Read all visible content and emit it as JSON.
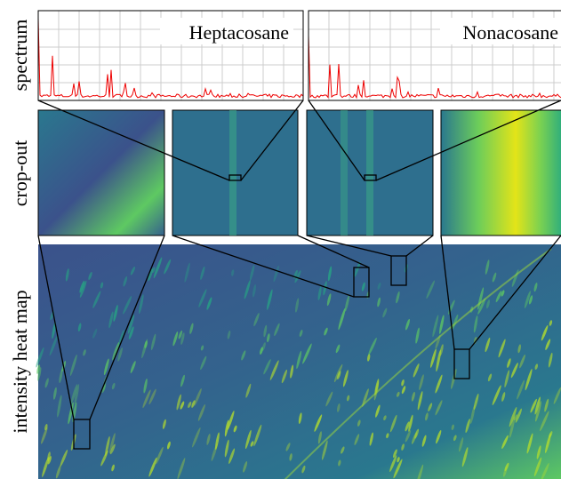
{
  "figure": {
    "row_labels": [
      "spectrum",
      "crop-out",
      "intensity heat map"
    ],
    "spectra": [
      {
        "label": "Heptacosane"
      },
      {
        "label": "Nonacosane"
      }
    ]
  }
}
